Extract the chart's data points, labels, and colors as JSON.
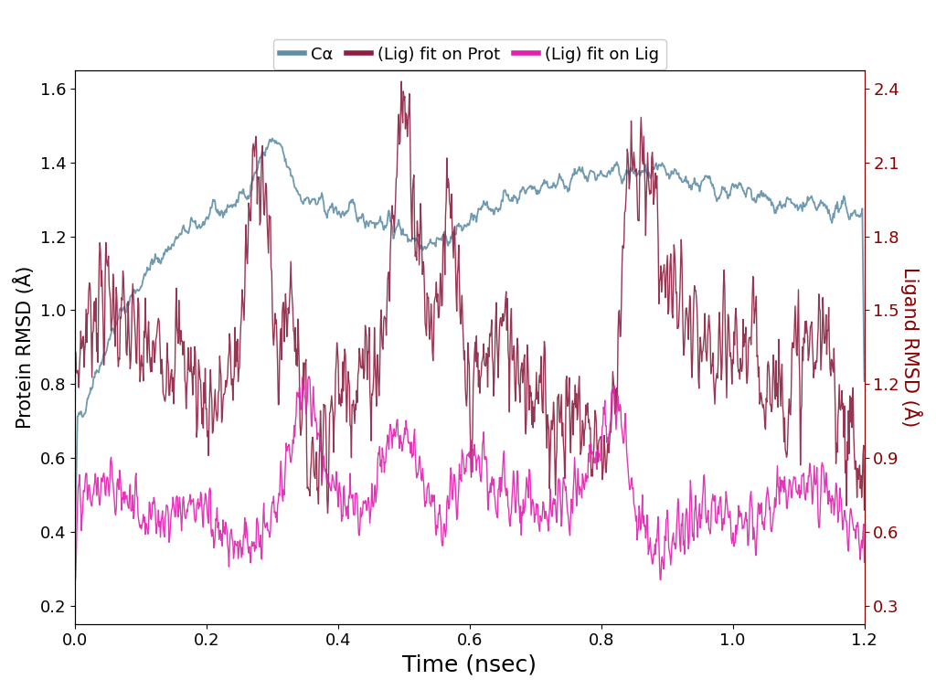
{
  "title": "",
  "xlabel": "Time (nsec)",
  "ylabel_left": "Protein RMSD (Å)",
  "ylabel_right": "Ligand RMSD (Å)",
  "xlim": [
    0.0,
    1.2
  ],
  "ylim_left": [
    0.15,
    1.65
  ],
  "ylim_right": [
    0.225,
    2.475
  ],
  "xticks": [
    0.0,
    0.2,
    0.4,
    0.6,
    0.8,
    1.0,
    1.2
  ],
  "yticks_left": [
    0.2,
    0.4,
    0.6,
    0.8,
    1.0,
    1.2,
    1.4,
    1.6
  ],
  "yticks_right": [
    0.3,
    0.6,
    0.9,
    1.2,
    1.5,
    1.8,
    2.1,
    2.4
  ],
  "color_ca": "#5f8fa8",
  "color_lig_prot": "#8b2040",
  "color_lig_lig": "#e020b0",
  "legend_labels": [
    "Cα",
    "(Lig) fit on Prot",
    "(Lig) fit on Lig"
  ],
  "figsize": [
    10.24,
    7.55
  ],
  "dpi": 100,
  "seed": 42,
  "n_points": 1200,
  "xlabel_fontsize": 18,
  "ylabel_fontsize": 15,
  "tick_fontsize": 13,
  "legend_fontsize": 13
}
